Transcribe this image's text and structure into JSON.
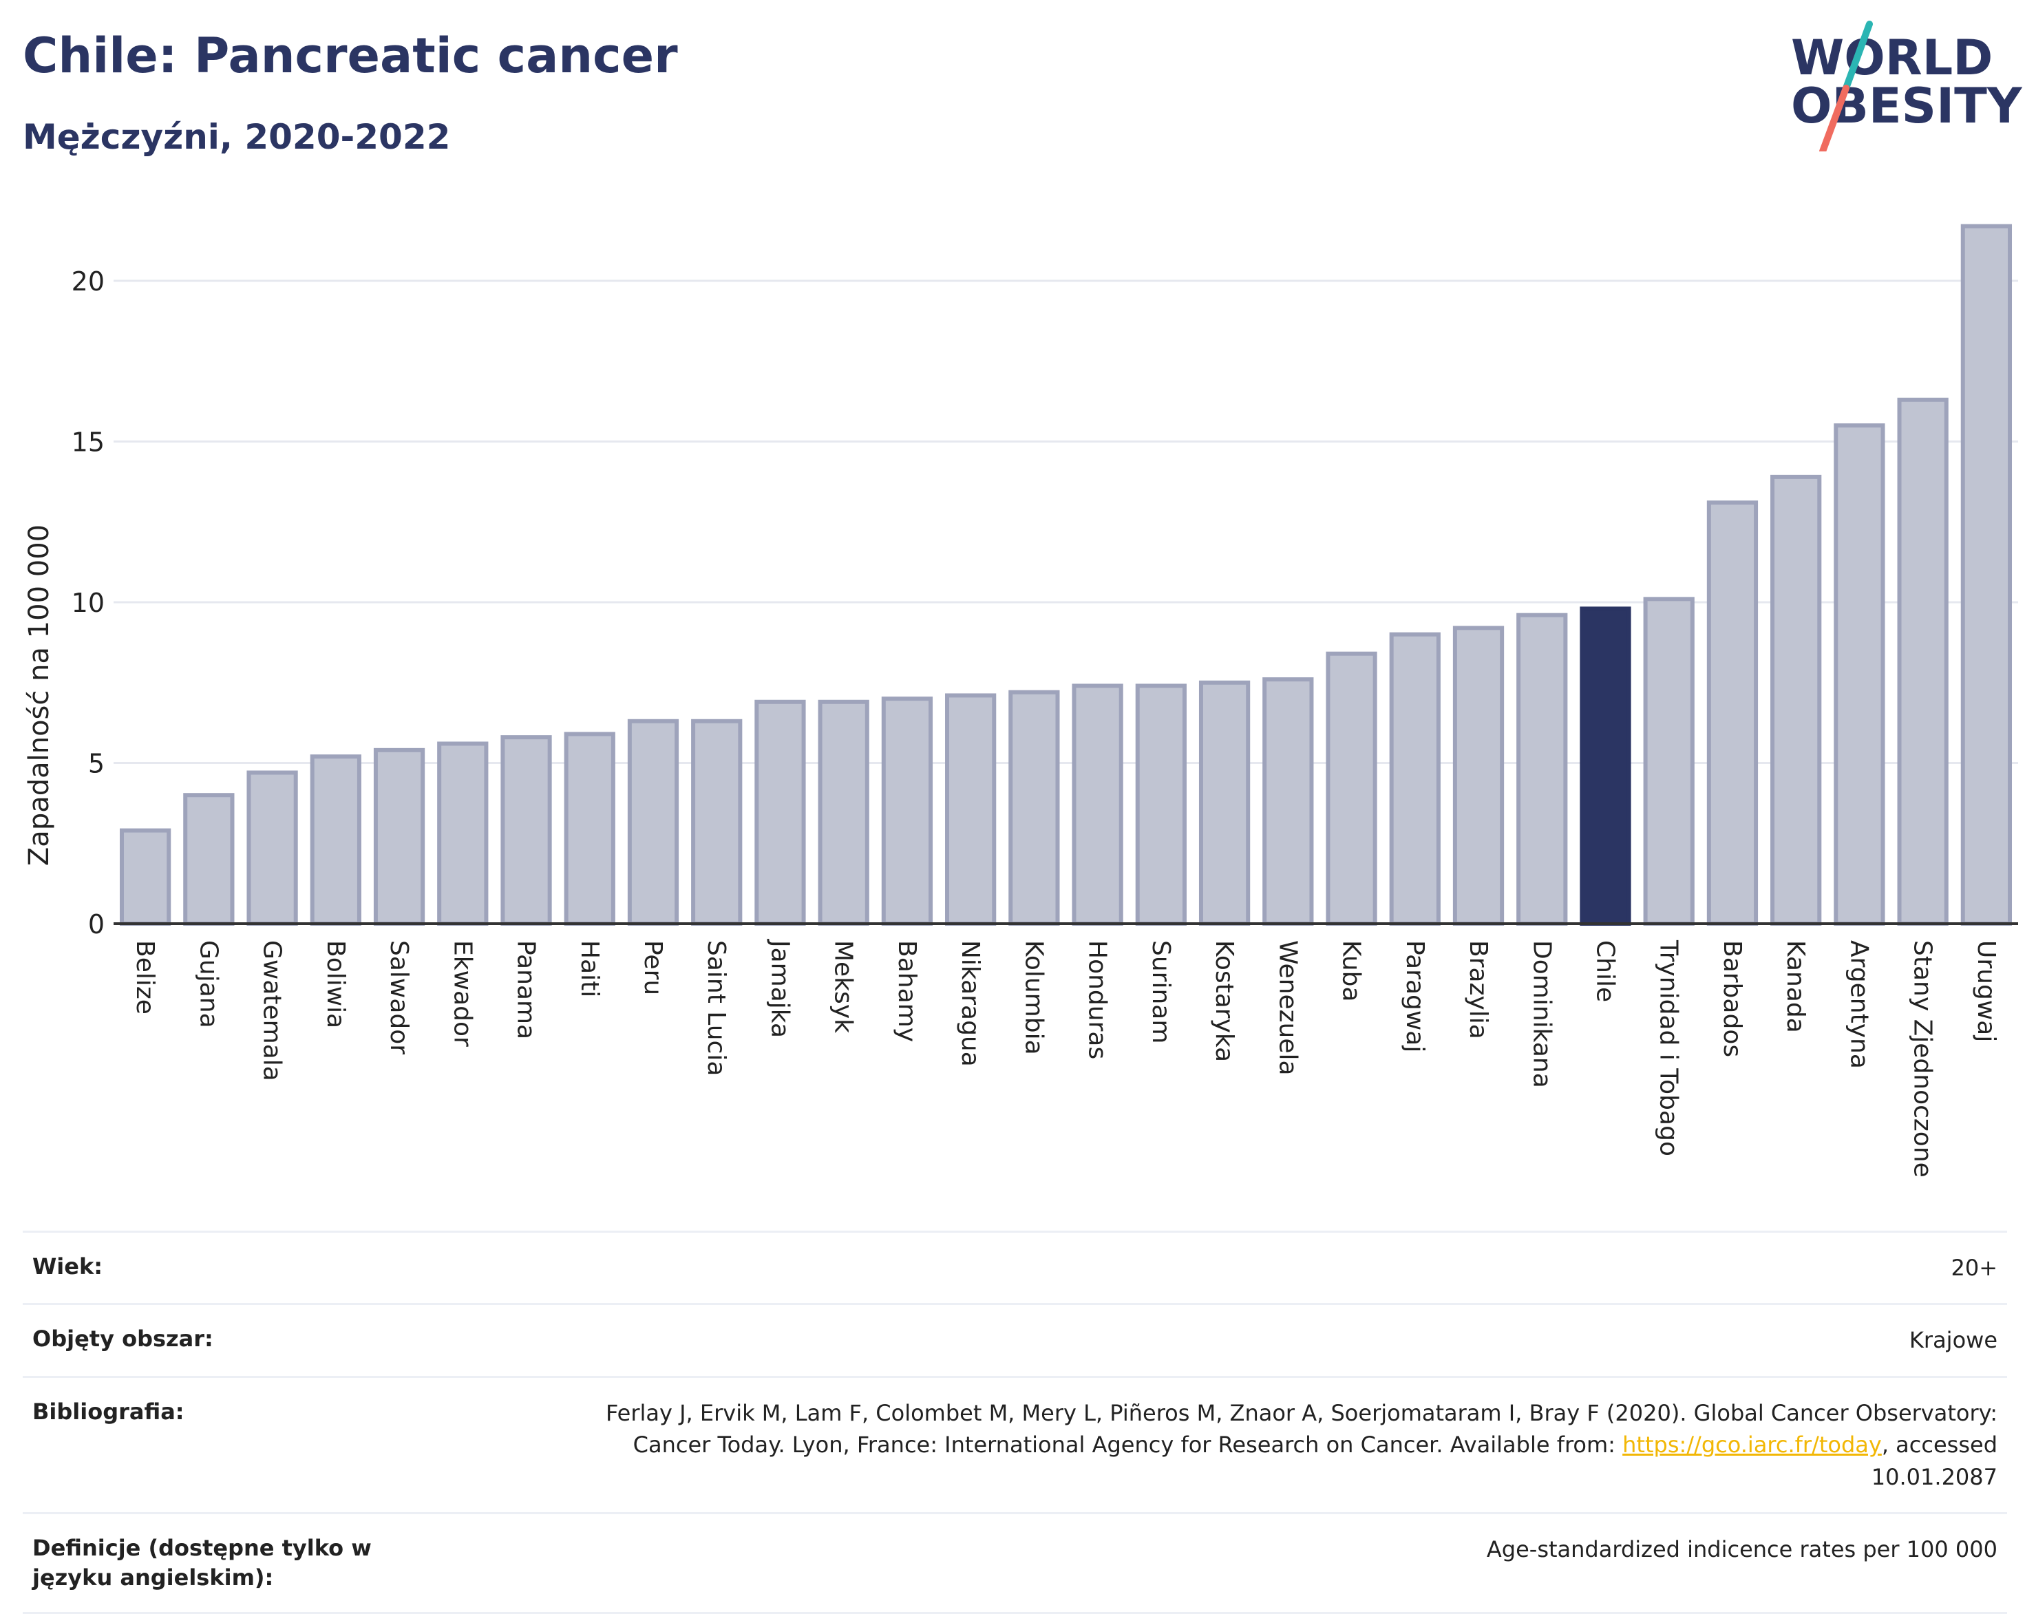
{
  "title": "Chile: Pancreatic cancer",
  "subtitle": "Mężczyźni, 2020-2022",
  "logo": {
    "line1": "WORLD",
    "line2": "OBESITY",
    "colors": {
      "text": "#2b3563",
      "slash_teal": "#2bb5b3",
      "slash_coral": "#f06b5f"
    }
  },
  "colors": {
    "bar": "#c0c4d2",
    "bar_border": "#9ea3bb",
    "highlight": "#2b3563",
    "grid": "#e6e8ef",
    "axis": "#333333"
  },
  "chart_data": {
    "type": "bar",
    "ylabel": "Zapadalność na 100 000",
    "ylim": [
      0,
      22
    ],
    "yticks": [
      0,
      5,
      10,
      15,
      20
    ],
    "grid": true,
    "highlight": "Chile",
    "categories": [
      "Belize",
      "Gujana",
      "Gwatemala",
      "Boliwia",
      "Salwador",
      "Ekwador",
      "Panama",
      "Haiti",
      "Peru",
      "Saint Lucia",
      "Jamajka",
      "Meksyk",
      "Bahamy",
      "Nikaragua",
      "Kolumbia",
      "Honduras",
      "Surinam",
      "Kostaryka",
      "Wenezuela",
      "Kuba",
      "Paragwaj",
      "Brazylia",
      "Dominikana",
      "Chile",
      "Trynidad i Tobago",
      "Barbados",
      "Kanada",
      "Argentyna",
      "Stany Zjednoczone",
      "Urugwaj"
    ],
    "values": [
      2.9,
      4.0,
      4.7,
      5.2,
      5.4,
      5.6,
      5.8,
      5.9,
      6.3,
      6.3,
      6.9,
      6.9,
      7.0,
      7.1,
      7.2,
      7.4,
      7.4,
      7.5,
      7.6,
      8.4,
      9.0,
      9.2,
      9.6,
      9.8,
      10.1,
      13.1,
      13.9,
      15.5,
      16.3,
      21.7
    ]
  },
  "meta": [
    {
      "label": "Wiek:",
      "value": "20+"
    },
    {
      "label": "Objęty obszar:",
      "value": "Krajowe"
    },
    {
      "label": "Bibliografia:",
      "value_pre": "Ferlay J, Ervik M, Lam F, Colombet M, Mery L, Piñeros M, Znaor A, Soerjomataram I, Bray F (2020). Global Cancer Observatory: Cancer Today. Lyon, France: International Agency for Research on Cancer. Available from: ",
      "link": "https://gco.iarc.fr/today",
      "value_post": ", accessed 10.01.2087"
    },
    {
      "label": "Definicje (dostępne tylko w języku angielskim):",
      "value": "Age-standardized indicence rates per 100 000"
    }
  ]
}
